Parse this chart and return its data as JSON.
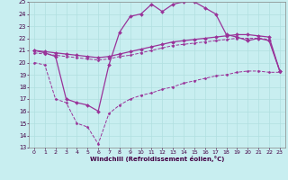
{
  "xlabel": "Windchill (Refroidissement éolien,°C)",
  "xlim": [
    -0.5,
    23.5
  ],
  "ylim": [
    13,
    25
  ],
  "xticks": [
    0,
    1,
    2,
    3,
    4,
    5,
    6,
    7,
    8,
    9,
    10,
    11,
    12,
    13,
    14,
    15,
    16,
    17,
    18,
    19,
    20,
    21,
    22,
    23
  ],
  "yticks": [
    13,
    14,
    15,
    16,
    17,
    18,
    19,
    20,
    21,
    22,
    23,
    24,
    25
  ],
  "bg_color": "#c8eef0",
  "grid_color": "#b0dfe0",
  "line_color": "#993399",
  "lines": [
    {
      "x": [
        0,
        1,
        2,
        3,
        4,
        5,
        6,
        7,
        8,
        9,
        10,
        11,
        12,
        13,
        14,
        15,
        16,
        17,
        18,
        19,
        20,
        21,
        22,
        23
      ],
      "y": [
        21.0,
        20.8,
        20.5,
        17.0,
        16.7,
        16.5,
        16.0,
        19.8,
        22.5,
        23.8,
        24.0,
        24.8,
        24.2,
        24.8,
        25.0,
        25.0,
        24.5,
        24.0,
        22.3,
        22.1,
        21.8,
        22.0,
        21.8,
        19.3
      ],
      "style": "-",
      "marker": "D",
      "markersize": 2.0,
      "linewidth": 0.9
    },
    {
      "x": [
        0,
        1,
        2,
        3,
        4,
        5,
        6,
        7,
        8,
        9,
        10,
        11,
        12,
        13,
        14,
        15,
        16,
        17,
        18,
        19,
        20,
        21,
        22,
        23
      ],
      "y": [
        21.0,
        20.9,
        20.8,
        20.7,
        20.6,
        20.5,
        20.4,
        20.5,
        20.7,
        20.9,
        21.1,
        21.3,
        21.5,
        21.7,
        21.8,
        21.9,
        22.0,
        22.1,
        22.2,
        22.3,
        22.3,
        22.2,
        22.1,
        19.3
      ],
      "style": "-",
      "marker": "D",
      "markersize": 2.0,
      "linewidth": 0.9
    },
    {
      "x": [
        0,
        1,
        2,
        3,
        4,
        5,
        6,
        7,
        8,
        9,
        10,
        11,
        12,
        13,
        14,
        15,
        16,
        17,
        18,
        19,
        20,
        21,
        22,
        23
      ],
      "y": [
        20.8,
        20.7,
        20.6,
        20.5,
        20.4,
        20.3,
        20.2,
        20.3,
        20.5,
        20.6,
        20.8,
        21.0,
        21.2,
        21.4,
        21.5,
        21.6,
        21.7,
        21.8,
        21.9,
        22.0,
        22.0,
        22.0,
        21.9,
        19.3
      ],
      "style": "--",
      "marker": "D",
      "markersize": 1.5,
      "linewidth": 0.7
    },
    {
      "x": [
        0,
        1,
        2,
        3,
        4,
        5,
        6,
        7,
        8,
        9,
        10,
        11,
        12,
        13,
        14,
        15,
        16,
        17,
        18,
        19,
        20,
        21,
        22,
        23
      ],
      "y": [
        20.0,
        19.8,
        17.0,
        16.7,
        15.0,
        14.7,
        13.3,
        15.8,
        16.5,
        17.0,
        17.3,
        17.5,
        17.8,
        18.0,
        18.3,
        18.5,
        18.7,
        18.9,
        19.0,
        19.2,
        19.3,
        19.3,
        19.2,
        19.2
      ],
      "style": "--",
      "marker": "D",
      "markersize": 1.5,
      "linewidth": 0.7
    }
  ]
}
